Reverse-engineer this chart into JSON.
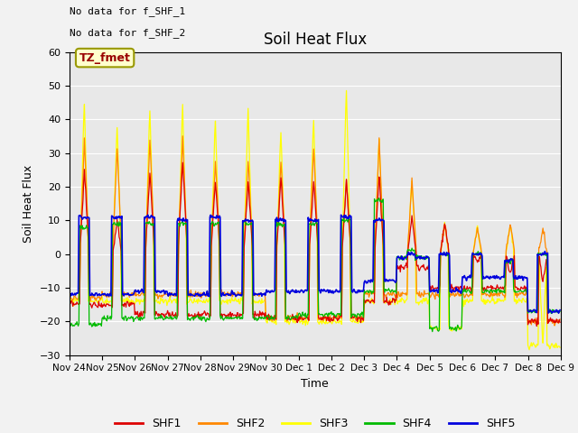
{
  "title": "Soil Heat Flux",
  "ylabel": "Soil Heat Flux",
  "xlabel": "Time",
  "ylim": [
    -30,
    60
  ],
  "yticks": [
    -30,
    -20,
    -10,
    0,
    10,
    20,
    30,
    40,
    50,
    60
  ],
  "xtick_labels": [
    "Nov 24",
    "Nov 25",
    "Nov 26",
    "Nov 27",
    "Nov 28",
    "Nov 29",
    "Nov 30",
    "Dec 1",
    "Dec 2",
    "Dec 3",
    "Dec 4",
    "Dec 5",
    "Dec 6",
    "Dec 7",
    "Dec 8",
    "Dec 9"
  ],
  "colors": {
    "SHF1": "#dd0000",
    "SHF2": "#ff8800",
    "SHF3": "#ffff00",
    "SHF4": "#00bb00",
    "SHF5": "#0000dd"
  },
  "legend_labels": [
    "SHF1",
    "SHF2",
    "SHF3",
    "SHF4",
    "SHF5"
  ],
  "annotations": [
    "No data for f_SHF_1",
    "No data for f_SHF_2"
  ],
  "box_label": "TZ_fmet",
  "fig_bg": "#f2f2f2",
  "plot_bg": "#e8e8e8"
}
